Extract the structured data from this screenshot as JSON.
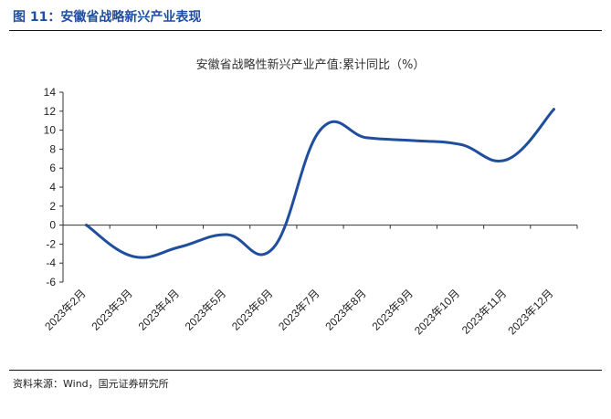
{
  "figure": {
    "title": "图 11：安徽省战略新兴产业表现",
    "source": "资料来源：Wind，国元证券研究所"
  },
  "chart_data": {
    "type": "line",
    "title": "安徽省战略性新兴产业产值:累计同比（%）",
    "xlabel": "",
    "ylabel": "",
    "categories": [
      "2023年2月",
      "2023年3月",
      "2023年4月",
      "2023年5月",
      "2023年6月",
      "2023年7月",
      "2023年8月",
      "2023年9月",
      "2023年10月",
      "2023年11月",
      "2023年12月"
    ],
    "y_ticks": [
      "14",
      "12",
      "10",
      "8",
      "6",
      "4",
      "2",
      "0",
      "-2",
      "-4",
      "-6"
    ],
    "ylim": [
      -6,
      14
    ],
    "series": [
      {
        "name": "",
        "values": [
          0,
          -3.3,
          -2.3,
          -1.0,
          -2.4,
          10.0,
          9.2,
          8.9,
          8.5,
          6.9,
          12.2
        ]
      }
    ],
    "line_color": "#1f4e9e",
    "grid": false,
    "legend": "none"
  }
}
